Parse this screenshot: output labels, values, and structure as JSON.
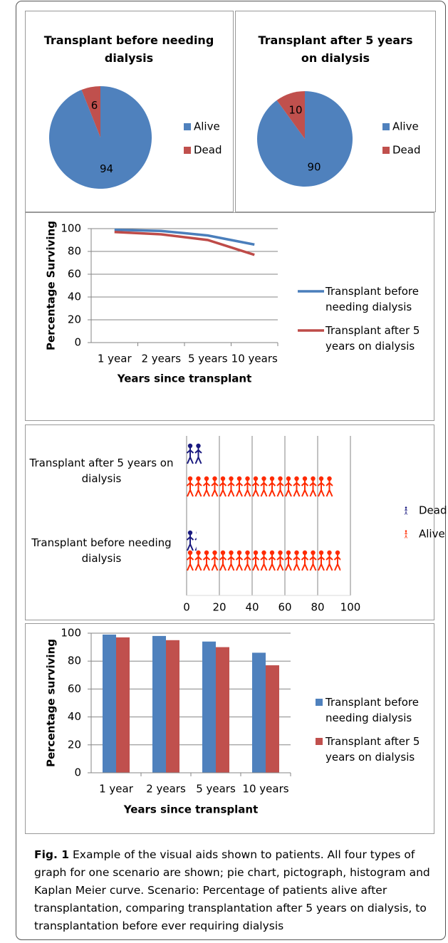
{
  "chart_data": [
    {
      "type": "pie",
      "title": "Transplant before needing dialysis",
      "categories": [
        "Alive",
        "Dead"
      ],
      "values": [
        94,
        6
      ],
      "colors": [
        "#4f81bd",
        "#c0504d"
      ],
      "legend": "right"
    },
    {
      "type": "pie",
      "title": "Transplant after 5 years on dialysis",
      "categories": [
        "Alive",
        "Dead"
      ],
      "values": [
        90,
        10
      ],
      "colors": [
        "#4f81bd",
        "#c0504d"
      ],
      "legend": "right"
    },
    {
      "type": "line",
      "categories": [
        "1 year",
        "2 years",
        "5 years",
        "10 years"
      ],
      "series": [
        {
          "name": "Transplant before needing dialysis",
          "color": "#4a7ebb",
          "values": [
            99,
            98,
            94,
            86
          ]
        },
        {
          "name": "Transplant after 5 years on dialysis",
          "color": "#be4b48",
          "values": [
            97,
            95,
            90,
            77
          ]
        }
      ],
      "ylim": [
        0,
        100
      ],
      "yticks": [
        0,
        20,
        40,
        60,
        80,
        100
      ],
      "grid": true,
      "y_label": "Percentage Surviving",
      "x_label": "Years since transplant",
      "legend": "right"
    },
    {
      "type": "pictograph",
      "categories": [
        "Transplant after 5 years on dialysis",
        "Transplant before needing dialysis"
      ],
      "series": [
        {
          "name": "Dead",
          "color": "#1a1a80",
          "values": [
            10,
            6
          ]
        },
        {
          "name": "Alive",
          "color": "#ff2a00",
          "values": [
            90,
            94
          ]
        }
      ],
      "xlim": [
        0,
        100
      ],
      "xticks": [
        0,
        20,
        40,
        60,
        80,
        100
      ],
      "grid": true,
      "legend": "right"
    },
    {
      "type": "bar",
      "categories": [
        "1 year",
        "2 years",
        "5 years",
        "10 years"
      ],
      "series": [
        {
          "name": "Transplant before needing dialysis",
          "color": "#4f81bd",
          "values": [
            99,
            98,
            94,
            86
          ]
        },
        {
          "name": "Transplant after 5 years on dialysis",
          "color": "#c0504d",
          "values": [
            97,
            95,
            90,
            77
          ]
        }
      ],
      "ylim": [
        0,
        100
      ],
      "yticks": [
        0,
        20,
        40,
        60,
        80,
        100
      ],
      "grid": true,
      "y_label": "Percentage surviving",
      "x_label": "Years since transplant",
      "legend": "right"
    }
  ],
  "caption": {
    "label": "Fig. 1",
    "text": "Example of the visual aids shown to patients. All four types of graph for one scenario are shown; pie chart, pictograph, histogram and Kaplan Meier curve. Scenario: Percentage of patients alive after transplantation, comparing transplantation after 5 years on dialysis, to transplantation before ever requiring dialysis"
  }
}
